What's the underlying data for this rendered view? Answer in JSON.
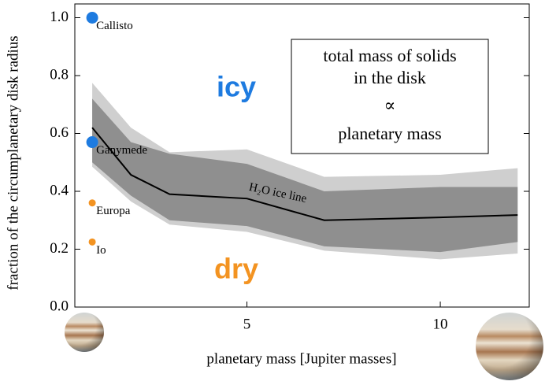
{
  "chart_data": {
    "type": "line",
    "xlabel": "planetary mass [Jupiter masses]",
    "ylabel": "fraction of the circumplanetary disk radius",
    "x": [
      1,
      2,
      3,
      5,
      7,
      10,
      12
    ],
    "series": [
      {
        "name": "H₂O ice line",
        "color": "#000000",
        "values": [
          0.62,
          0.457,
          0.39,
          0.375,
          0.3,
          0.31,
          0.318
        ]
      }
    ],
    "bands": [
      {
        "color": "#cfcfcf",
        "upper": [
          0.775,
          0.62,
          0.535,
          0.545,
          0.45,
          0.457,
          0.48
        ],
        "lower": [
          0.485,
          0.365,
          0.285,
          0.26,
          0.195,
          0.165,
          0.185
        ]
      },
      {
        "color": "#8f8f8f",
        "upper": [
          0.72,
          0.57,
          0.53,
          0.495,
          0.4,
          0.415,
          0.415
        ],
        "lower": [
          0.5,
          0.385,
          0.3,
          0.28,
          0.21,
          0.19,
          0.225
        ]
      }
    ],
    "points": [
      {
        "label": "Callisto",
        "x": 1,
        "y": 1.0,
        "color": "#1e7be0"
      },
      {
        "label": "Ganymede",
        "x": 1,
        "y": 0.57,
        "color": "#1e7be0"
      },
      {
        "label": "Europa",
        "x": 1,
        "y": 0.36,
        "color": "#f39321"
      },
      {
        "label": "Io",
        "x": 1,
        "y": 0.225,
        "color": "#f39321"
      }
    ],
    "annotations": {
      "icy": {
        "text": "icy",
        "color": "#1e7be0"
      },
      "dry": {
        "text": "dry",
        "color": "#f39321"
      },
      "box": [
        "total mass of solids",
        "in the disk",
        "∝",
        "planetary mass"
      ]
    },
    "xlim": [
      0.55,
      12.3
    ],
    "ylim": [
      0,
      1.05
    ],
    "xticks": [
      5,
      10
    ],
    "yticks": [
      {
        "value": 0,
        "label": "0.0"
      },
      {
        "value": 0.2,
        "label": "0.2"
      },
      {
        "value": 0.4,
        "label": "0.4"
      },
      {
        "value": 0.6,
        "label": "0.6"
      },
      {
        "value": 0.8,
        "label": "0.8"
      },
      {
        "value": 1,
        "label": "1.0"
      }
    ]
  }
}
